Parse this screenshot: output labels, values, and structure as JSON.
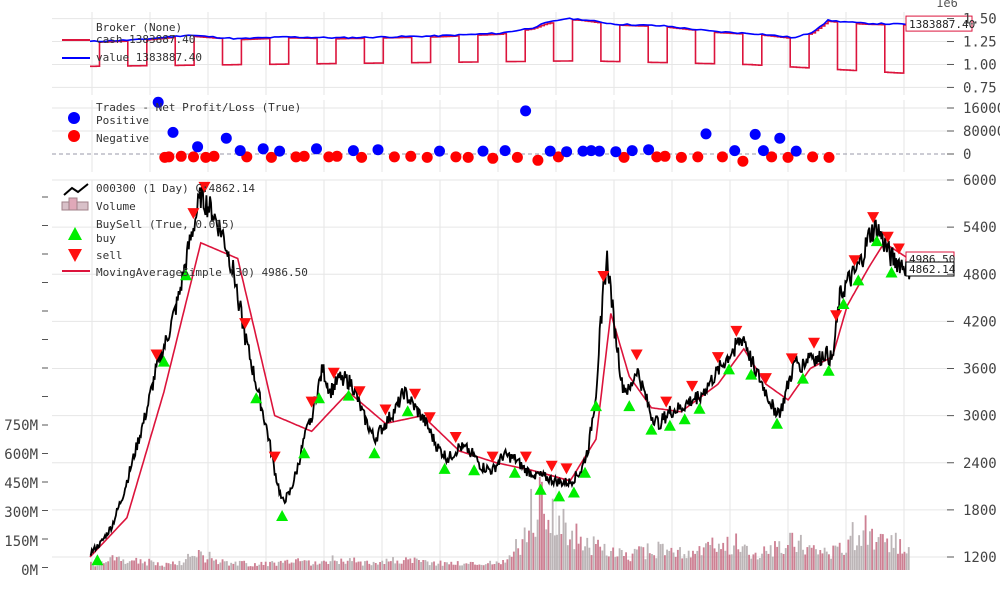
{
  "chart_data": [
    {
      "type": "line",
      "panel": "broker",
      "scale_label": "1e6",
      "legend_title": "Broker (None)",
      "series": [
        {
          "name": "cash 1383887.40",
          "color": "#dc143c"
        },
        {
          "name": "value 1383887.40",
          "color": "#0000ff"
        }
      ],
      "value_points": [
        [
          0,
          1.25
        ],
        [
          60,
          1.27
        ],
        [
          120,
          1.32
        ],
        [
          180,
          1.28
        ],
        [
          240,
          1.3
        ],
        [
          300,
          1.29
        ],
        [
          360,
          1.3
        ],
        [
          420,
          1.31
        ],
        [
          500,
          1.34
        ],
        [
          540,
          1.4
        ],
        [
          555,
          1.45
        ],
        [
          580,
          1.5
        ],
        [
          600,
          1.49
        ],
        [
          640,
          1.44
        ],
        [
          700,
          1.42
        ],
        [
          760,
          1.36
        ],
        [
          820,
          1.33
        ],
        [
          860,
          1.29
        ],
        [
          880,
          1.35
        ],
        [
          900,
          1.48
        ],
        [
          940,
          1.45
        ],
        [
          980,
          1.44
        ],
        [
          1000,
          1.44
        ]
      ],
      "cash_low_points": [
        [
          0,
          0.98
        ],
        [
          200,
          1.0
        ],
        [
          400,
          1.02
        ],
        [
          600,
          1.04
        ],
        [
          700,
          1.02
        ],
        [
          800,
          1.0
        ],
        [
          900,
          0.95
        ],
        [
          1000,
          0.9
        ]
      ],
      "last_label": "1383887.40",
      "yticks": [
        "0.75",
        "1.00",
        "1.25",
        "1.50"
      ],
      "ylim": [
        0.7,
        1.55
      ]
    },
    {
      "type": "scatter",
      "panel": "trades",
      "legend_title": "Trades - Net Profit/Loss (True)",
      "series": [
        {
          "name": "Positive",
          "color": "#0000ff"
        },
        {
          "name": "Negative",
          "color": "#ff0000"
        }
      ],
      "positive": [
        [
          32,
          180000
        ],
        [
          50,
          75000
        ],
        [
          80,
          25000
        ],
        [
          115,
          55000
        ],
        [
          132,
          12000
        ],
        [
          160,
          18000
        ],
        [
          180,
          10000
        ],
        [
          225,
          18000
        ],
        [
          270,
          12000
        ],
        [
          300,
          15000
        ],
        [
          375,
          10000
        ],
        [
          428,
          10000
        ],
        [
          455,
          12000
        ],
        [
          480,
          150000
        ],
        [
          510,
          10000
        ],
        [
          530,
          8000
        ],
        [
          550,
          10000
        ],
        [
          560,
          12000
        ],
        [
          570,
          10000
        ],
        [
          590,
          8000
        ],
        [
          610,
          12000
        ],
        [
          630,
          15000
        ],
        [
          700,
          70000
        ],
        [
          735,
          12000
        ],
        [
          760,
          68000
        ],
        [
          770,
          12000
        ],
        [
          790,
          55000
        ],
        [
          810,
          10000
        ]
      ],
      "negative": [
        [
          40,
          -12000
        ],
        [
          45,
          -10000
        ],
        [
          60,
          -8000
        ],
        [
          75,
          -10000
        ],
        [
          90,
          -12000
        ],
        [
          100,
          -8000
        ],
        [
          140,
          -10000
        ],
        [
          170,
          -12000
        ],
        [
          200,
          -10000
        ],
        [
          210,
          -8000
        ],
        [
          240,
          -10000
        ],
        [
          250,
          -8000
        ],
        [
          280,
          -12000
        ],
        [
          320,
          -10000
        ],
        [
          340,
          -8000
        ],
        [
          360,
          -12000
        ],
        [
          395,
          -10000
        ],
        [
          410,
          -12000
        ],
        [
          440,
          -15000
        ],
        [
          470,
          -12000
        ],
        [
          495,
          -22000
        ],
        [
          520,
          -10000
        ],
        [
          600,
          -12000
        ],
        [
          640,
          -10000
        ],
        [
          650,
          -8000
        ],
        [
          670,
          -12000
        ],
        [
          690,
          -10000
        ],
        [
          720,
          -10000
        ],
        [
          745,
          -25000
        ],
        [
          780,
          -10000
        ],
        [
          800,
          -12000
        ],
        [
          830,
          -10000
        ],
        [
          850,
          -12000
        ]
      ],
      "yticks": [
        "0",
        "80000",
        "160000"
      ],
      "ylim": [
        -40000,
        200000
      ]
    },
    {
      "type": "line",
      "panel": "price",
      "series": [
        {
          "name": "000300 (1 Day) C:4862.14",
          "color": "#000000"
        },
        {
          "name": "Volume",
          "color": "#c8a0a8"
        },
        {
          "name": "BuySell (True, 0.015)",
          "color": "#000000"
        },
        {
          "name": "buy",
          "color": "#00ff00"
        },
        {
          "name": "sell",
          "color": "#ff0000"
        },
        {
          "name": "MovingAverageSimple (30) 4986.50",
          "color": "#dc143c"
        }
      ],
      "close_points": [
        [
          0,
          1250
        ],
        [
          3,
          1380
        ],
        [
          6,
          1600
        ],
        [
          9,
          2000
        ],
        [
          12,
          2500
        ],
        [
          15,
          3000
        ],
        [
          18,
          3600
        ],
        [
          21,
          4000
        ],
        [
          24,
          4500
        ],
        [
          27,
          5200
        ],
        [
          30,
          5800
        ],
        [
          33,
          5600
        ],
        [
          36,
          5300
        ],
        [
          39,
          4800
        ],
        [
          42,
          4000
        ],
        [
          45,
          3400
        ],
        [
          48,
          2800
        ],
        [
          50,
          2300
        ],
        [
          52,
          1900
        ],
        [
          54,
          2000
        ],
        [
          56,
          2300
        ],
        [
          58,
          2700
        ],
        [
          60,
          3000
        ],
        [
          62,
          3400
        ],
        [
          63,
          3600
        ],
        [
          65,
          3300
        ],
        [
          68,
          3500
        ],
        [
          71,
          3400
        ],
        [
          74,
          3000
        ],
        [
          77,
          2700
        ],
        [
          80,
          2900
        ],
        [
          83,
          3100
        ],
        [
          85,
          3300
        ],
        [
          88,
          3100
        ],
        [
          91,
          2900
        ],
        [
          94,
          2600
        ],
        [
          97,
          2450
        ],
        [
          100,
          2600
        ],
        [
          103,
          2550
        ],
        [
          106,
          2350
        ],
        [
          109,
          2300
        ],
        [
          112,
          2500
        ],
        [
          115,
          2450
        ],
        [
          118,
          2300
        ],
        [
          121,
          2250
        ],
        [
          124,
          2200
        ],
        [
          127,
          2150
        ],
        [
          130,
          2150
        ],
        [
          133,
          2300
        ],
        [
          135,
          2600
        ],
        [
          137,
          3300
        ],
        [
          138,
          4000
        ],
        [
          139,
          4600
        ],
        [
          140,
          5000
        ],
        [
          141,
          4600
        ],
        [
          142,
          4100
        ],
        [
          143,
          3800
        ],
        [
          144,
          3400
        ],
        [
          146,
          3300
        ],
        [
          148,
          3600
        ],
        [
          150,
          3300
        ],
        [
          152,
          3000
        ],
        [
          154,
          2900
        ],
        [
          157,
          3050
        ],
        [
          160,
          3100
        ],
        [
          163,
          3200
        ],
        [
          166,
          3300
        ],
        [
          169,
          3500
        ],
        [
          172,
          3700
        ],
        [
          175,
          3900
        ],
        [
          177,
          4000
        ],
        [
          179,
          3700
        ],
        [
          181,
          3500
        ],
        [
          183,
          3300
        ],
        [
          185,
          3100
        ],
        [
          187,
          3050
        ],
        [
          189,
          3400
        ],
        [
          191,
          3700
        ],
        [
          193,
          3650
        ],
        [
          195,
          3800
        ],
        [
          197,
          3700
        ],
        [
          199,
          3800
        ],
        [
          201,
          3700
        ],
        [
          203,
          4500
        ],
        [
          205,
          4700
        ],
        [
          207,
          4800
        ],
        [
          209,
          5000
        ],
        [
          211,
          5300
        ],
        [
          213,
          5400
        ],
        [
          215,
          5200
        ],
        [
          217,
          5000
        ],
        [
          219,
          4950
        ],
        [
          222,
          4862
        ]
      ],
      "ma_points": [
        [
          0,
          1200
        ],
        [
          10,
          1700
        ],
        [
          20,
          3300
        ],
        [
          30,
          5200
        ],
        [
          40,
          5000
        ],
        [
          50,
          3000
        ],
        [
          60,
          2800
        ],
        [
          70,
          3300
        ],
        [
          80,
          2900
        ],
        [
          90,
          3000
        ],
        [
          100,
          2550
        ],
        [
          110,
          2400
        ],
        [
          120,
          2300
        ],
        [
          130,
          2170
        ],
        [
          137,
          2700
        ],
        [
          141,
          4300
        ],
        [
          146,
          3500
        ],
        [
          152,
          3100
        ],
        [
          160,
          3050
        ],
        [
          170,
          3400
        ],
        [
          177,
          3850
        ],
        [
          183,
          3400
        ],
        [
          189,
          3200
        ],
        [
          195,
          3600
        ],
        [
          201,
          3750
        ],
        [
          205,
          4400
        ],
        [
          211,
          4900
        ],
        [
          215,
          5200
        ],
        [
          222,
          4986.5
        ]
      ],
      "buy_x": [
        2,
        20,
        26,
        45,
        52,
        58,
        62,
        70,
        77,
        86,
        96,
        104,
        115,
        122,
        127,
        131,
        134,
        137,
        146,
        152,
        157,
        161,
        165,
        173,
        179,
        186,
        193,
        200,
        204,
        208,
        213,
        217
      ],
      "sell_x": [
        18,
        28,
        31,
        42,
        50,
        60,
        66,
        73,
        80,
        88,
        92,
        99,
        109,
        118,
        125,
        129,
        139,
        148,
        156,
        163,
        170,
        175,
        183,
        190,
        196,
        202,
        207,
        212,
        216,
        219
      ],
      "last_close_label": "4862.14",
      "last_ma_label": "4986.50",
      "yticks": [
        "1200",
        "1800",
        "2400",
        "3000",
        "3600",
        "4200",
        "4800",
        "5400",
        "6000"
      ],
      "ylim": [
        1050,
        6000
      ]
    },
    {
      "type": "bar",
      "panel": "volume",
      "values_m": [
        30,
        40,
        55,
        60,
        50,
        45,
        40,
        35,
        30,
        35,
        45,
        60,
        80,
        70,
        55,
        45,
        40,
        35,
        30,
        32,
        34,
        36,
        38,
        40,
        42,
        40,
        38,
        45,
        55,
        50,
        45,
        40,
        42,
        44,
        46,
        48,
        50,
        45,
        40,
        38,
        36,
        35,
        34,
        33,
        32,
        34,
        36,
        40,
        60,
        120,
        180,
        300,
        350,
        280,
        250,
        200,
        170,
        140,
        120,
        100,
        90,
        85,
        80,
        90,
        100,
        110,
        95,
        90,
        85,
        80,
        95,
        110,
        120,
        130,
        140,
        120,
        100,
        95,
        90,
        110,
        130,
        150,
        140,
        120,
        110,
        105,
        100,
        120,
        180,
        200,
        150,
        140,
        130,
        150,
        130
      ],
      "yticks": [
        "0M",
        "150M",
        "300M",
        "450M",
        "600M",
        "750M"
      ],
      "ylim": [
        0,
        850
      ]
    }
  ]
}
